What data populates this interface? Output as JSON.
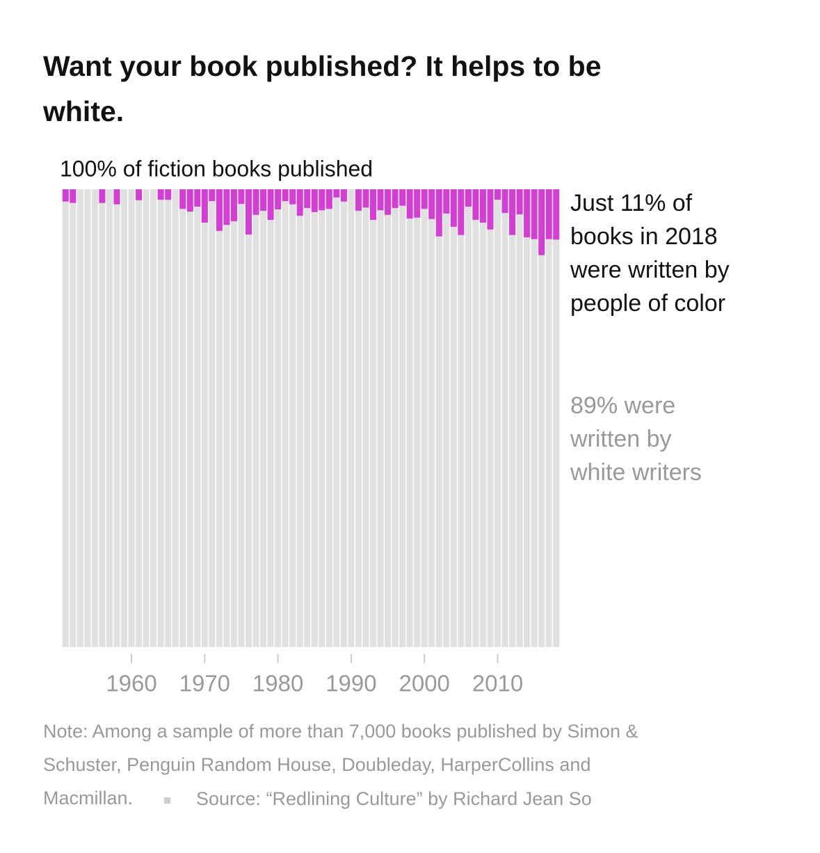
{
  "chart_data": {
    "type": "stacked_bar",
    "title": [
      "Want your book published? It helps to be",
      "white."
    ],
    "top_annotation": "100% of fiction books published",
    "annotations": [
      {
        "lines": [
          "Just 11% of",
          "books in 2018",
          "were written by",
          "people of color"
        ],
        "color": "#121212"
      },
      {
        "lines": [
          "89% were",
          "written by",
          "white writers"
        ],
        "color": "#999999"
      }
    ],
    "x": [
      1951,
      1952,
      1953,
      1954,
      1955,
      1956,
      1957,
      1958,
      1959,
      1960,
      1961,
      1962,
      1963,
      1964,
      1965,
      1966,
      1967,
      1968,
      1969,
      1970,
      1971,
      1972,
      1973,
      1974,
      1975,
      1976,
      1977,
      1978,
      1979,
      1980,
      1981,
      1982,
      1983,
      1984,
      1985,
      1986,
      1987,
      1988,
      1989,
      1990,
      1991,
      1992,
      1993,
      1994,
      1995,
      1996,
      1997,
      1998,
      1999,
      2000,
      2001,
      2002,
      2003,
      2004,
      2005,
      2006,
      2007,
      2008,
      2009,
      2010,
      2011,
      2012,
      2013,
      2014,
      2015,
      2016,
      2017,
      2018
    ],
    "series": [
      {
        "color": "#e0e0e0",
        "values": [
          97.3,
          97,
          100,
          100,
          100,
          97,
          100,
          96.7,
          100,
          100,
          97.6,
          100,
          100,
          97.7,
          97.7,
          100,
          95.7,
          95.1,
          96.2,
          92.7,
          97.4,
          90.9,
          92.2,
          93,
          96.8,
          90.1,
          94.4,
          95.3,
          93.3,
          95.6,
          97.4,
          96.7,
          94.2,
          95.9,
          95,
          95.4,
          95.7,
          98.2,
          97.3,
          100,
          95.3,
          96,
          93.3,
          95.4,
          94.4,
          95.9,
          96.4,
          93.6,
          93.8,
          95.7,
          93.5,
          89.7,
          94.7,
          91.8,
          90,
          96.2,
          93.3,
          92.7,
          91.2,
          97.7,
          94.8,
          90,
          94.5,
          89.5,
          89.1,
          85.6,
          89.1,
          89
        ]
      },
      {
        "color": "#d43ed5",
        "values": [
          2.7,
          3,
          0,
          0,
          0,
          3,
          0,
          3.3,
          0,
          0,
          2.4,
          0,
          0,
          2.3,
          2.3,
          0,
          4.3,
          4.9,
          3.8,
          7.3,
          2.6,
          9.1,
          7.8,
          7,
          3.2,
          9.9,
          5.6,
          4.7,
          6.7,
          4.4,
          2.6,
          3.3,
          5.8,
          4.1,
          5,
          4.6,
          4.3,
          1.8,
          2.7,
          0,
          4.7,
          4,
          6.7,
          4.6,
          5.6,
          4.1,
          3.6,
          6.4,
          6.2,
          4.3,
          6.5,
          10.3,
          5.3,
          8.2,
          10,
          3.8,
          6.7,
          7.3,
          8.8,
          2.3,
          5.2,
          10,
          5.5,
          10.5,
          10.9,
          14.4,
          10.9,
          11
        ]
      }
    ],
    "xlim": [
      1950.5,
      2018.5
    ],
    "xticks": [
      1960,
      1970,
      1980,
      1990,
      2000,
      2010
    ],
    "ylim": [
      0,
      100
    ],
    "note": [
      "Note: Among a sample of more than 7,000 books published by Simon &",
      "Schuster, Penguin Random House, Doubleday, HarperCollins and",
      "Macmillan."
    ],
    "source": "Source: “Redlining Culture” by Richard Jean So"
  }
}
